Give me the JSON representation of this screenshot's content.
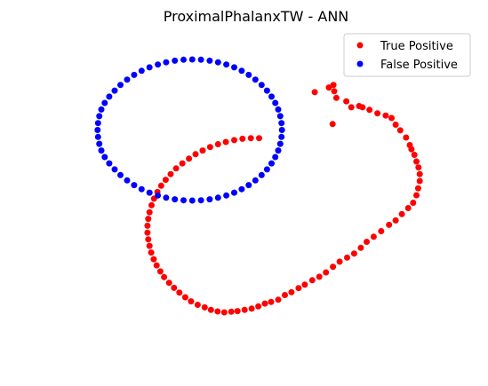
{
  "chart_data": {
    "type": "scatter",
    "title": "ProximalPhalanxTW - ANN",
    "xlabel": "",
    "ylabel": "",
    "axes_visible": false,
    "grid": false,
    "legend_placement": "top-right",
    "xlim": [
      0,
      100
    ],
    "ylim": [
      0,
      100
    ],
    "series": [
      {
        "name": "True Positive",
        "color": "#ff0000",
        "points": [
          [
            63.4,
            82.0
          ],
          [
            66.8,
            83.5
          ],
          [
            67.9,
            84.3
          ],
          [
            68.1,
            82.3
          ],
          [
            68.6,
            80.2
          ],
          [
            67.7,
            71.9
          ],
          [
            71.0,
            79.1
          ],
          [
            72.2,
            77.2
          ],
          [
            74.1,
            77.6
          ],
          [
            74.9,
            77.2
          ],
          [
            76.6,
            76.4
          ],
          [
            78.5,
            75.3
          ],
          [
            80.5,
            74.6
          ],
          [
            81.9,
            73.8
          ],
          [
            82.9,
            71.7
          ],
          [
            84.0,
            69.9
          ],
          [
            85.4,
            67.6
          ],
          [
            86.3,
            65.2
          ],
          [
            86.7,
            63.9
          ],
          [
            87.4,
            62.1
          ],
          [
            87.9,
            60.0
          ],
          [
            88.4,
            58.1
          ],
          [
            88.7,
            56.0
          ],
          [
            88.7,
            53.8
          ],
          [
            88.3,
            51.5
          ],
          [
            87.9,
            49.3
          ],
          [
            87.1,
            46.9
          ],
          [
            85.9,
            45.2
          ],
          [
            84.4,
            43.3
          ],
          [
            82.9,
            41.3
          ],
          [
            81.3,
            39.9
          ],
          [
            79.4,
            37.9
          ],
          [
            77.6,
            36.1
          ],
          [
            75.9,
            34.5
          ],
          [
            74.5,
            32.6
          ],
          [
            72.9,
            30.8
          ],
          [
            71.2,
            29.5
          ],
          [
            69.4,
            28.2
          ],
          [
            67.8,
            26.6
          ],
          [
            66.1,
            24.8
          ],
          [
            64.5,
            23.4
          ],
          [
            62.8,
            22.3
          ],
          [
            61.0,
            20.9
          ],
          [
            59.5,
            19.8
          ],
          [
            57.8,
            18.5
          ],
          [
            56.2,
            17.6
          ],
          [
            54.6,
            16.1
          ],
          [
            52.9,
            15.4
          ],
          [
            51.4,
            14.9
          ],
          [
            49.8,
            14.0
          ],
          [
            48.2,
            13.3
          ],
          [
            46.5,
            12.9
          ],
          [
            44.8,
            12.5
          ],
          [
            43.3,
            12.3
          ],
          [
            41.6,
            12.1
          ],
          [
            40.0,
            12.4
          ],
          [
            38.4,
            12.9
          ],
          [
            36.9,
            13.7
          ],
          [
            35.2,
            14.5
          ],
          [
            33.6,
            15.6
          ],
          [
            32.2,
            16.9
          ],
          [
            30.8,
            18.4
          ],
          [
            29.5,
            19.9
          ],
          [
            28.3,
            21.5
          ],
          [
            27.1,
            23.3
          ],
          [
            26.2,
            25.1
          ],
          [
            25.3,
            27.0
          ],
          [
            24.6,
            29.0
          ],
          [
            24.0,
            31.1
          ],
          [
            23.6,
            33.2
          ],
          [
            23.3,
            35.3
          ],
          [
            23.1,
            37.4
          ],
          [
            23.1,
            39.6
          ],
          [
            23.3,
            41.8
          ],
          [
            23.6,
            43.9
          ],
          [
            24.1,
            46.1
          ],
          [
            24.7,
            48.2
          ],
          [
            25.5,
            50.3
          ],
          [
            26.4,
            52.3
          ],
          [
            27.5,
            54.2
          ],
          [
            28.7,
            56.0
          ],
          [
            30.0,
            57.8
          ],
          [
            31.5,
            59.4
          ],
          [
            33.1,
            60.9
          ],
          [
            34.7,
            62.3
          ],
          [
            36.4,
            63.5
          ],
          [
            38.2,
            64.6
          ],
          [
            40.1,
            65.5
          ],
          [
            42.0,
            66.2
          ],
          [
            44.0,
            66.8
          ],
          [
            46.0,
            67.2
          ],
          [
            48.0,
            67.4
          ],
          [
            50.0,
            67.4
          ]
        ]
      },
      {
        "name": "False Positive",
        "color": "#0000ff",
        "points": [
          [
            12.0,
            76.5
          ],
          [
            12.8,
            78.6
          ],
          [
            13.9,
            80.6
          ],
          [
            15.2,
            82.5
          ],
          [
            16.6,
            84.3
          ],
          [
            18.2,
            86.0
          ],
          [
            19.9,
            87.5
          ],
          [
            21.7,
            88.8
          ],
          [
            23.6,
            89.9
          ],
          [
            25.6,
            90.8
          ],
          [
            27.6,
            91.5
          ],
          [
            29.7,
            92.0
          ],
          [
            31.8,
            92.3
          ],
          [
            33.9,
            92.4
          ],
          [
            36.0,
            92.3
          ],
          [
            38.1,
            92.0
          ],
          [
            40.1,
            91.5
          ],
          [
            42.1,
            90.8
          ],
          [
            44.0,
            89.9
          ],
          [
            45.8,
            88.8
          ],
          [
            47.5,
            87.5
          ],
          [
            49.1,
            86.0
          ],
          [
            50.6,
            84.3
          ],
          [
            51.9,
            82.5
          ],
          [
            53.0,
            80.6
          ],
          [
            53.9,
            78.6
          ],
          [
            54.6,
            76.5
          ],
          [
            55.1,
            74.4
          ],
          [
            55.4,
            72.2
          ],
          [
            55.5,
            70.0
          ],
          [
            55.4,
            67.8
          ],
          [
            55.1,
            65.6
          ],
          [
            54.6,
            63.5
          ],
          [
            53.9,
            61.4
          ],
          [
            53.0,
            59.4
          ],
          [
            51.9,
            57.5
          ],
          [
            50.6,
            55.7
          ],
          [
            49.1,
            54.0
          ],
          [
            47.5,
            52.5
          ],
          [
            45.8,
            51.2
          ],
          [
            44.0,
            50.1
          ],
          [
            42.1,
            49.2
          ],
          [
            40.1,
            48.5
          ],
          [
            38.1,
            48.0
          ],
          [
            36.0,
            47.7
          ],
          [
            33.9,
            47.6
          ],
          [
            31.8,
            47.7
          ],
          [
            29.7,
            48.0
          ],
          [
            27.6,
            48.5
          ],
          [
            25.6,
            49.2
          ],
          [
            23.6,
            50.1
          ],
          [
            21.7,
            51.2
          ],
          [
            19.9,
            52.5
          ],
          [
            18.2,
            54.0
          ],
          [
            16.6,
            55.7
          ],
          [
            15.2,
            57.5
          ],
          [
            13.9,
            59.4
          ],
          [
            12.8,
            61.4
          ],
          [
            12.0,
            63.5
          ],
          [
            11.5,
            65.6
          ],
          [
            11.2,
            67.8
          ],
          [
            11.1,
            70.0
          ],
          [
            11.2,
            72.2
          ],
          [
            11.5,
            74.4
          ]
        ]
      }
    ]
  }
}
